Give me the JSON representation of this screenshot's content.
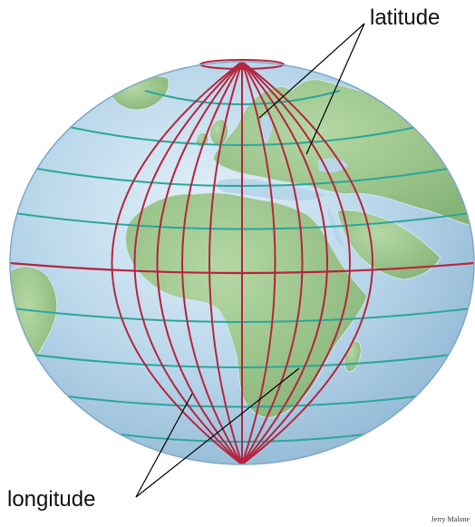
{
  "labels": {
    "latitude": "latitude",
    "longitude": "longitude",
    "credit": "Jerry Malone"
  },
  "colors": {
    "ocean": "#b8d6ea",
    "land": "#9ec78f",
    "latitude_lines": "#2aa79b",
    "longitude_lines": "#b5253f",
    "pointer_lines": "#000000"
  }
}
